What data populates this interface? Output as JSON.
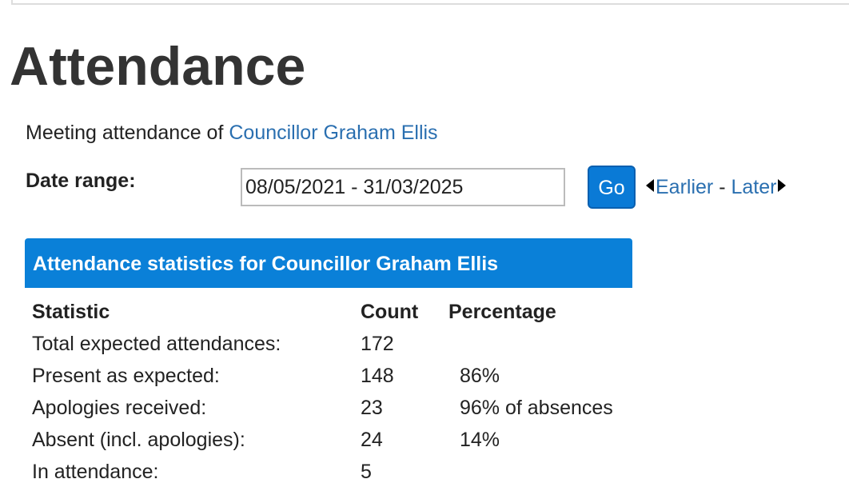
{
  "header": {
    "title": "Attendance"
  },
  "intro": {
    "text": "Meeting attendance of",
    "link": "Councillor Graham Ellis"
  },
  "form": {
    "label": "Date range:",
    "value": "08/05/2021 - 31/03/2025",
    "button": "Go",
    "earlier": "Earlier",
    "separator": "-",
    "later": "Later"
  },
  "table": {
    "caption": "Attendance statistics for Councillor Graham Ellis",
    "headers": [
      "Statistic",
      "Count",
      "Percentage"
    ],
    "rows": [
      [
        "Total expected attendances:",
        "172",
        ""
      ],
      [
        "Present as expected:",
        "148",
        "86%"
      ],
      [
        "Apologies received:",
        "23",
        "96% of absences"
      ],
      [
        "Absent (incl. apologies):",
        "24",
        "14%"
      ],
      [
        "In attendance:",
        "5",
        ""
      ]
    ]
  }
}
